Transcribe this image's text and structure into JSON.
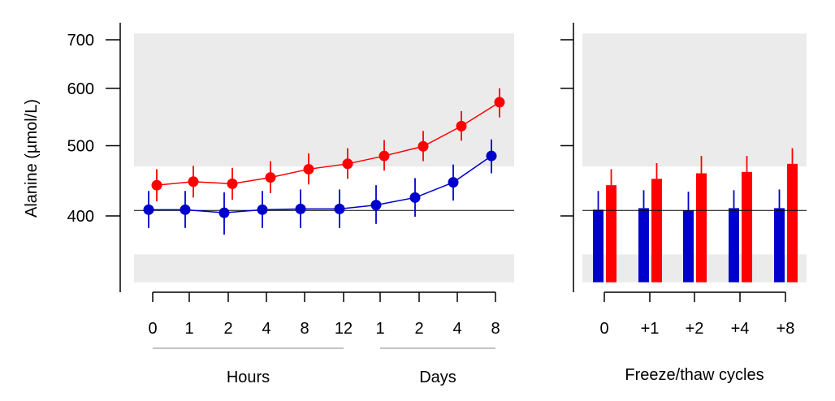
{
  "chart_data": [
    {
      "type": "line",
      "ylabel": "Alanine (µmol/L)",
      "yscale": "log",
      "ylim": [
        324,
        714
      ],
      "yticks": [
        400,
        500,
        600,
        700
      ],
      "categories": [
        "0",
        "1",
        "2",
        "4",
        "8",
        "12",
        "1",
        "2",
        "4",
        "8"
      ],
      "groups": [
        {
          "label": "Hours",
          "from": 0,
          "to": 5
        },
        {
          "label": "Days",
          "from": 6,
          "to": 9
        }
      ],
      "reference_line": 407,
      "shaded_bands": [
        [
          468,
          714
        ],
        [
          324,
          354
        ]
      ],
      "series": [
        {
          "name": "red",
          "color": "#ff0000",
          "values": [
            441,
            446,
            443,
            452,
            464,
            472,
            484,
            499,
            532,
            574
          ],
          "lower": [
            419,
            424,
            421,
            430,
            442,
            450,
            462,
            476,
            508,
            547
          ],
          "upper": [
            464,
            469,
            466,
            476,
            488,
            496,
            509,
            524,
            558,
            600
          ]
        },
        {
          "name": "blue",
          "color": "#0000cc",
          "values": [
            408,
            408,
            404,
            408,
            409,
            409,
            414,
            424,
            445,
            484
          ],
          "lower": [
            385,
            385,
            377,
            385,
            385,
            385,
            390,
            399,
            420,
            458
          ],
          "upper": [
            433,
            433,
            431,
            433,
            435,
            435,
            441,
            451,
            471,
            510
          ]
        }
      ]
    },
    {
      "type": "bar",
      "xlabel": "Freeze/thaw cycles",
      "yscale": "log",
      "ylim": [
        324,
        714
      ],
      "categories": [
        "0",
        "+1",
        "+2",
        "+4",
        "+8"
      ],
      "reference_line": 407,
      "shaded_bands": [
        [
          468,
          714
        ],
        [
          324,
          354
        ]
      ],
      "series": [
        {
          "name": "blue",
          "color": "#0000cc",
          "values": [
            408,
            410,
            407,
            410,
            410
          ],
          "upper": [
            433,
            434,
            432,
            434,
            435
          ]
        },
        {
          "name": "red",
          "color": "#ff0000",
          "values": [
            441,
            450,
            458,
            460,
            472
          ],
          "upper": [
            464,
            473,
            484,
            484,
            496
          ]
        }
      ]
    }
  ]
}
